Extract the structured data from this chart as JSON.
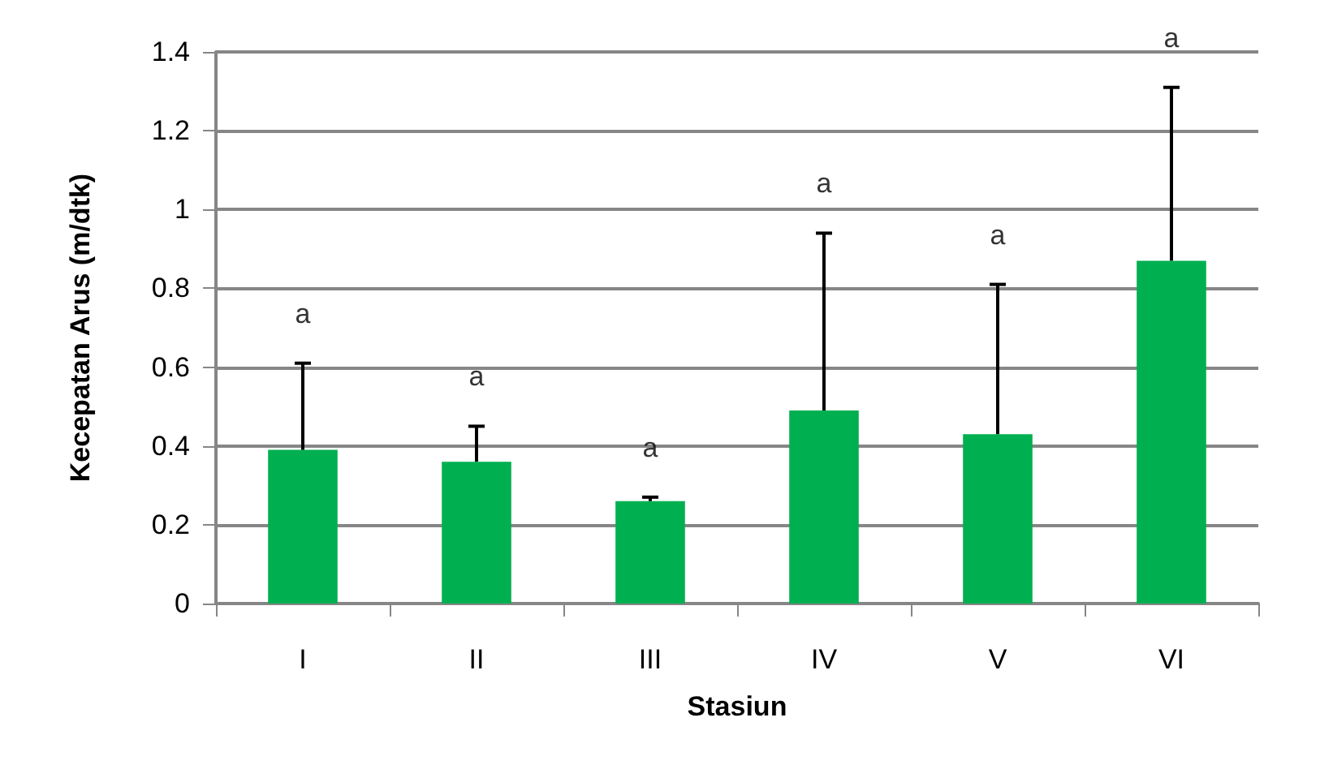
{
  "chart_data": {
    "type": "bar",
    "xlabel": "Stasiun",
    "ylabel": "Kecepatan Arus (m/dtk)",
    "categories": [
      "I",
      "II",
      "III",
      "IV",
      "V",
      "VI"
    ],
    "values": [
      0.39,
      0.36,
      0.26,
      0.49,
      0.43,
      0.87
    ],
    "errors": [
      [
        0.39,
        0.61
      ],
      [
        0.36,
        0.45
      ],
      [
        0.26,
        0.27
      ],
      [
        0.49,
        0.94
      ],
      [
        0.43,
        0.81
      ],
      [
        0.87,
        1.31
      ]
    ],
    "color": "#00b050",
    "ylim": [
      0,
      1.4
    ],
    "yticks": [
      0,
      0.2,
      0.4,
      0.6,
      0.8,
      1,
      1.2,
      1.4
    ],
    "grid": "y",
    "annotations": [
      "a",
      "a",
      "a",
      "a",
      "a",
      "a"
    ]
  }
}
